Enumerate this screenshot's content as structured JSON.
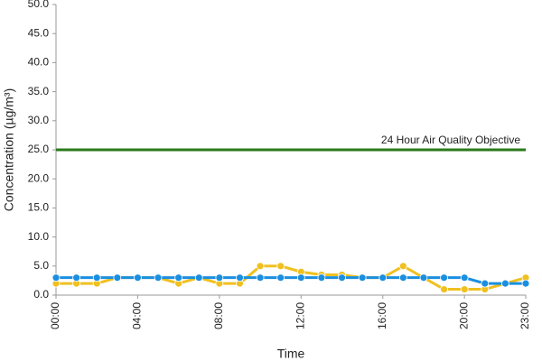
{
  "chart_data": {
    "type": "line",
    "x_label": "Time",
    "y_label": "Concentration (µg/m³)",
    "categories": [
      "00:00",
      null,
      null,
      null,
      "04:00",
      null,
      null,
      null,
      "08:00",
      null,
      null,
      null,
      "12:00",
      null,
      null,
      null,
      "16:00",
      null,
      null,
      null,
      "20:00",
      null,
      null,
      "23:00"
    ],
    "series": [
      {
        "color": "#f0c020",
        "values": [
          2,
          2,
          2,
          3,
          3,
          3,
          2,
          3,
          2,
          2,
          5,
          5,
          4,
          3.5,
          3.5,
          3,
          3,
          5,
          3,
          1,
          1,
          1,
          2,
          3
        ]
      },
      {
        "color": "#1a8fe0",
        "values": [
          3,
          3,
          3,
          3,
          3,
          3,
          3,
          3,
          3,
          3,
          3,
          3,
          3,
          3,
          3,
          3,
          3,
          3,
          3,
          3,
          3,
          2,
          2,
          2
        ]
      },
      {
        "name": "24 Hour Air Quality Objective",
        "color": "#2a7a1a",
        "markers": false,
        "values": [
          25,
          25,
          25,
          25,
          25,
          25,
          25,
          25,
          25,
          25,
          25,
          25,
          25,
          25,
          25,
          25,
          25,
          25,
          25,
          25,
          25,
          25,
          25,
          25
        ]
      }
    ],
    "ylim": [
      0,
      50
    ],
    "yticks": [
      {
        "value": 0,
        "label": "0.0"
      },
      {
        "value": 5,
        "label": "5.0"
      },
      {
        "value": 10,
        "label": "10.0"
      },
      {
        "value": 15,
        "label": "15.0"
      },
      {
        "value": 20,
        "label": "20.0"
      },
      {
        "value": 25,
        "label": "25.0"
      },
      {
        "value": 30,
        "label": "30.0"
      },
      {
        "value": 35,
        "label": "35.0"
      },
      {
        "value": 40,
        "label": "40.0"
      },
      {
        "value": 45,
        "label": "45.0"
      },
      {
        "value": 50,
        "label": "50.0"
      }
    ],
    "grid": false
  }
}
